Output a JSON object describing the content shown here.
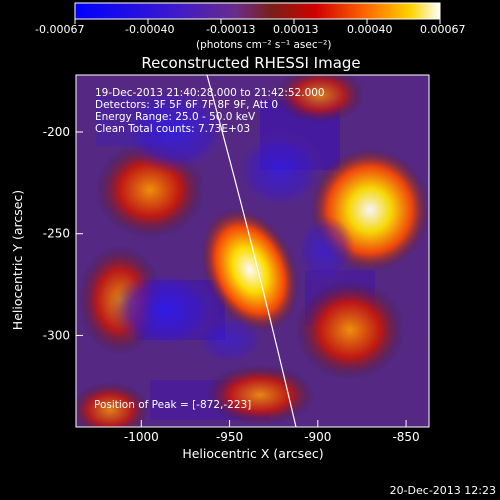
{
  "colorbar": {
    "ticks": [
      "-0.00067",
      "-0.00040",
      "-0.00013",
      "0.00013",
      "0.00040",
      "0.00067"
    ],
    "unit_label": "(photons cm⁻² s⁻¹ asec⁻²)"
  },
  "image": {
    "title": "Reconstructed RHESSI Image",
    "info_lines": [
      "19-Dec-2013 21:40:28.000 to 21:42:52.000",
      "Detectors: 3F 5F 6F 7F 8F 9F, Att 0",
      "Energy Range: 25.0 - 50.0 keV",
      "Clean   Total counts: 7.73E+03"
    ],
    "peak_label": "Position of Peak = [-872,-223]",
    "x_axis": {
      "label": "Heliocentric X (arcsec)",
      "range": [
        -1037,
        -837
      ],
      "ticks": [
        "-1000",
        "-950",
        "-900",
        "-850"
      ],
      "tick_values": [
        -1000,
        -950,
        -900,
        -850
      ]
    },
    "y_axis": {
      "label": "Heliocentric Y (arcsec)",
      "range": [
        -345,
        -172
      ],
      "ticks": [
        "-200",
        "-250",
        "-300"
      ],
      "tick_values": [
        -200,
        -250,
        -300
      ]
    },
    "colors": {
      "low": "#2b00d8",
      "mid": "#5a2a82",
      "high": "#ffffff",
      "accent": "#ff3000"
    }
  },
  "footer": {
    "timestamp": "20-Dec-2013 12:23"
  }
}
